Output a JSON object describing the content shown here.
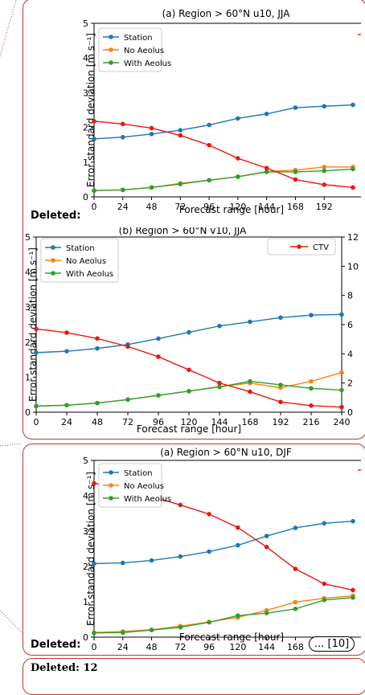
{
  "deleted_label": "Deleted:",
  "more_label": "... [10]",
  "deleted12": "Deleted: 12",
  "chart_data": [
    {
      "type": "line",
      "title": "(a) Region > 60°N u10, JJA",
      "xlabel": "Forecast range [hour]",
      "ylabel": "Error standard deviation [m s⁻¹]",
      "x": [
        0,
        24,
        48,
        72,
        96,
        120,
        144,
        168,
        192,
        216
      ],
      "xticks": [
        "0",
        "24",
        "48",
        "72",
        "96",
        "120",
        "144",
        "168",
        "192"
      ],
      "yticks": [
        "0",
        "1",
        "2",
        "3",
        "4",
        "5"
      ],
      "xlim": [
        0,
        216
      ],
      "ylim": [
        0,
        5
      ],
      "series": [
        {
          "name": "Station",
          "color": "#1f77b4",
          "values": [
            1.67,
            1.72,
            1.81,
            1.92,
            2.07,
            2.26,
            2.39,
            2.57,
            2.61,
            2.65
          ]
        },
        {
          "name": "No Aeolus",
          "color": "#ff7f0e",
          "values": [
            0.18,
            0.2,
            0.27,
            0.39,
            0.48,
            0.58,
            0.73,
            0.77,
            0.86,
            0.86
          ]
        },
        {
          "name": "With Aeolus",
          "color": "#2ca02c",
          "values": [
            0.18,
            0.2,
            0.27,
            0.37,
            0.48,
            0.58,
            0.72,
            0.72,
            0.75,
            0.8
          ]
        },
        {
          "name": "",
          "color": "#e8190f",
          "values": [
            2.18,
            2.1,
            1.98,
            1.77,
            1.49,
            1.11,
            0.83,
            0.5,
            0.35,
            0.27
          ]
        }
      ]
    },
    {
      "type": "line",
      "title": "(b) Region > 60°N v10, JJA",
      "xlabel": "Forecast range [hour]",
      "ylabel": "Error standard deviation [m s⁻¹]",
      "x": [
        0,
        24,
        48,
        72,
        96,
        120,
        144,
        168,
        192,
        216,
        240
      ],
      "xticks": [
        "0",
        "24",
        "48",
        "72",
        "96",
        "120",
        "144",
        "168",
        "192",
        "216",
        "240"
      ],
      "yticks": [
        "0",
        "1",
        "2",
        "3",
        "4",
        "5"
      ],
      "y2ticks": [
        "0",
        "2",
        "4",
        "6",
        "8",
        "10",
        "12"
      ],
      "xlim": [
        0,
        240
      ],
      "ylim": [
        0,
        5
      ],
      "y2lim": [
        0,
        12
      ],
      "series": [
        {
          "name": "Station",
          "color": "#1f77b4",
          "values": [
            1.7,
            1.74,
            1.82,
            1.93,
            2.1,
            2.28,
            2.46,
            2.58,
            2.7,
            2.77,
            2.79
          ]
        },
        {
          "name": "No Aeolus",
          "color": "#ff7f0e",
          "values": [
            0.18,
            0.2,
            0.26,
            0.36,
            0.48,
            0.6,
            0.73,
            0.83,
            0.7,
            0.88,
            1.13
          ]
        },
        {
          "name": "With Aeolus",
          "color": "#2ca02c",
          "values": [
            0.17,
            0.2,
            0.26,
            0.36,
            0.48,
            0.6,
            0.72,
            0.88,
            0.78,
            0.68,
            0.63
          ]
        },
        {
          "name": "CTV",
          "color": "#e8190f",
          "axis": "y2",
          "values": [
            5.7,
            5.45,
            5.05,
            4.5,
            3.8,
            2.9,
            2.0,
            1.4,
            0.7,
            0.45,
            0.35
          ]
        }
      ]
    },
    {
      "type": "line",
      "title": "(a) Region > 60°N u10, DJF",
      "xlabel": "Forecast range [hour]",
      "ylabel": "Error standard deviation [m s⁻¹]",
      "x": [
        0,
        24,
        48,
        72,
        96,
        120,
        144,
        168,
        192,
        216
      ],
      "xticks": [
        "0",
        "24",
        "48",
        "72",
        "96",
        "120",
        "144",
        "168",
        "192"
      ],
      "yticks": [
        "0",
        "1",
        "2",
        "3",
        "4",
        "5"
      ],
      "xlim": [
        0,
        216
      ],
      "ylim": [
        0,
        5
      ],
      "series": [
        {
          "name": "Station",
          "color": "#1f77b4",
          "values": [
            2.08,
            2.1,
            2.17,
            2.28,
            2.42,
            2.6,
            2.86,
            3.09,
            3.22,
            3.28
          ]
        },
        {
          "name": "No Aeolus",
          "color": "#ff7f0e",
          "values": [
            0.13,
            0.16,
            0.21,
            0.31,
            0.43,
            0.56,
            0.76,
            0.99,
            1.1,
            1.17
          ]
        },
        {
          "name": "With Aeolus",
          "color": "#2ca02c",
          "values": [
            0.12,
            0.13,
            0.2,
            0.28,
            0.42,
            0.61,
            0.68,
            0.8,
            1.05,
            1.12
          ]
        },
        {
          "name": "",
          "color": "#e8190f",
          "values": [
            4.35,
            4.22,
            3.98,
            3.74,
            3.48,
            3.1,
            2.55,
            1.93,
            1.51,
            1.33
          ]
        }
      ]
    }
  ]
}
